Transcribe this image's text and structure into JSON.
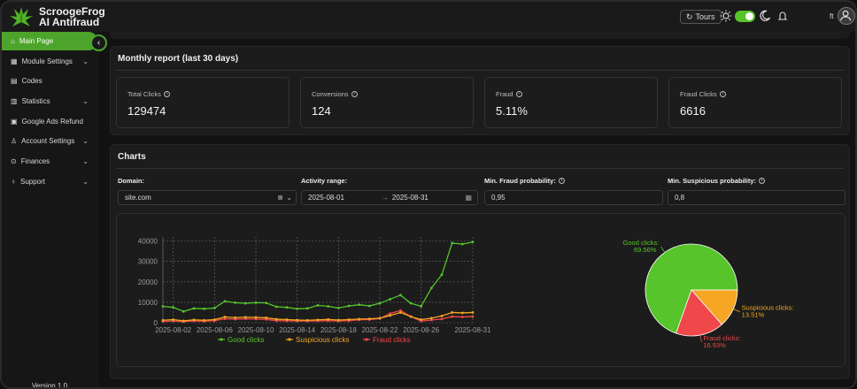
{
  "brand": {
    "line1": "ScroogeFrog",
    "line2": "AI Antifraud"
  },
  "topbar": {
    "tours_label": "Tours",
    "user_initials": "ft"
  },
  "sidebar": {
    "items": [
      {
        "label": "Main Page",
        "icon": "home-icon",
        "active": true,
        "has_chevron": false
      },
      {
        "label": "Module Settings",
        "icon": "grid-icon",
        "active": false,
        "has_chevron": true
      },
      {
        "label": "Codes",
        "icon": "code-icon",
        "active": false,
        "has_chevron": false
      },
      {
        "label": "Statistics",
        "icon": "bar-chart-icon",
        "active": false,
        "has_chevron": true
      },
      {
        "label": "Google Ads Refund",
        "icon": "refund-icon",
        "active": false,
        "has_chevron": false
      },
      {
        "label": "Account Settings",
        "icon": "user-icon",
        "active": false,
        "has_chevron": true
      },
      {
        "label": "Finances",
        "icon": "dollar-icon",
        "active": false,
        "has_chevron": true
      },
      {
        "label": "Support",
        "icon": "bulb-icon",
        "active": false,
        "has_chevron": true
      }
    ],
    "version": "Version 1.0"
  },
  "report": {
    "title": "Monthly report (last 30 days)",
    "cards": [
      {
        "label": "Total Clicks",
        "value": "129474"
      },
      {
        "label": "Conversions",
        "value": "124"
      },
      {
        "label": "Fraud",
        "value": "5.11%"
      },
      {
        "label": "Fraud Clicks",
        "value": "6616"
      }
    ]
  },
  "charts_panel": {
    "title": "Charts",
    "domain_label": "Domain:",
    "domain_value": "site.com",
    "range_label": "Activity range:",
    "range_start": "2025-08-01",
    "range_sep": "→",
    "range_end": "2025-08-31",
    "fraud_label": "Min. Fraud probability:",
    "fraud_value": "0,95",
    "susp_label": "Min. Suspicious probability:",
    "susp_value": "0,8"
  },
  "colors": {
    "accent": "#4da42a",
    "good": "#56c42a",
    "suspicious": "#f5a623",
    "fraud": "#f0484a"
  },
  "chart_data": [
    {
      "type": "line",
      "x": [
        "2025-08-01",
        "2025-08-02",
        "2025-08-03",
        "2025-08-04",
        "2025-08-05",
        "2025-08-06",
        "2025-08-07",
        "2025-08-08",
        "2025-08-09",
        "2025-08-10",
        "2025-08-11",
        "2025-08-12",
        "2025-08-13",
        "2025-08-14",
        "2025-08-15",
        "2025-08-16",
        "2025-08-17",
        "2025-08-18",
        "2025-08-19",
        "2025-08-20",
        "2025-08-21",
        "2025-08-22",
        "2025-08-23",
        "2025-08-24",
        "2025-08-25",
        "2025-08-26",
        "2025-08-27",
        "2025-08-28",
        "2025-08-29",
        "2025-08-30",
        "2025-08-31"
      ],
      "xticks": [
        "2025-08-02",
        "2025-08-06",
        "2025-08-10",
        "2025-08-14",
        "2025-08-18",
        "2025-08-22",
        "2025-08-26",
        "2025-08-31"
      ],
      "yticks": [
        0,
        10000,
        20000,
        30000,
        40000
      ],
      "ylim": [
        0,
        42000
      ],
      "grid": true,
      "legend": "bottom",
      "series": [
        {
          "name": "Good clicks",
          "color": "#56c42a",
          "values": [
            8000,
            7500,
            5500,
            7000,
            6800,
            7200,
            10500,
            9800,
            9500,
            9800,
            9700,
            7800,
            7500,
            6800,
            7000,
            8500,
            8000,
            7200,
            8200,
            8800,
            8200,
            9500,
            11500,
            13500,
            9500,
            8000,
            17000,
            23500,
            39000,
            38500,
            39500
          ]
        },
        {
          "name": "Suspicious clicks",
          "color": "#f5a623",
          "values": [
            1200,
            1500,
            900,
            1400,
            1200,
            1500,
            2800,
            2500,
            2700,
            2600,
            2400,
            1700,
            1500,
            1300,
            1200,
            1400,
            1600,
            1300,
            1500,
            1800,
            1900,
            2200,
            3500,
            5000,
            3000,
            1500,
            2200,
            3300,
            5000,
            4800,
            5000
          ]
        },
        {
          "name": "Fraud clicks",
          "color": "#f0484a",
          "values": [
            600,
            800,
            500,
            900,
            700,
            1000,
            1900,
            1700,
            1900,
            1800,
            1600,
            1000,
            900,
            800,
            800,
            900,
            1000,
            800,
            1000,
            1400,
            1500,
            2000,
            4500,
            6000,
            3000,
            800,
            1300,
            1800,
            3000,
            2800,
            3000
          ]
        }
      ]
    },
    {
      "type": "pie",
      "slices": [
        {
          "label": "Good clicks",
          "value": 69.56,
          "display": "69.56%",
          "color": "#56c42a"
        },
        {
          "label": "Suspicious clicks",
          "value": 13.51,
          "display": "13.51%",
          "color": "#f5a623"
        },
        {
          "label": "Fraud clicks",
          "value": 16.93,
          "display": "16.93%",
          "color": "#f0484a"
        }
      ]
    }
  ]
}
